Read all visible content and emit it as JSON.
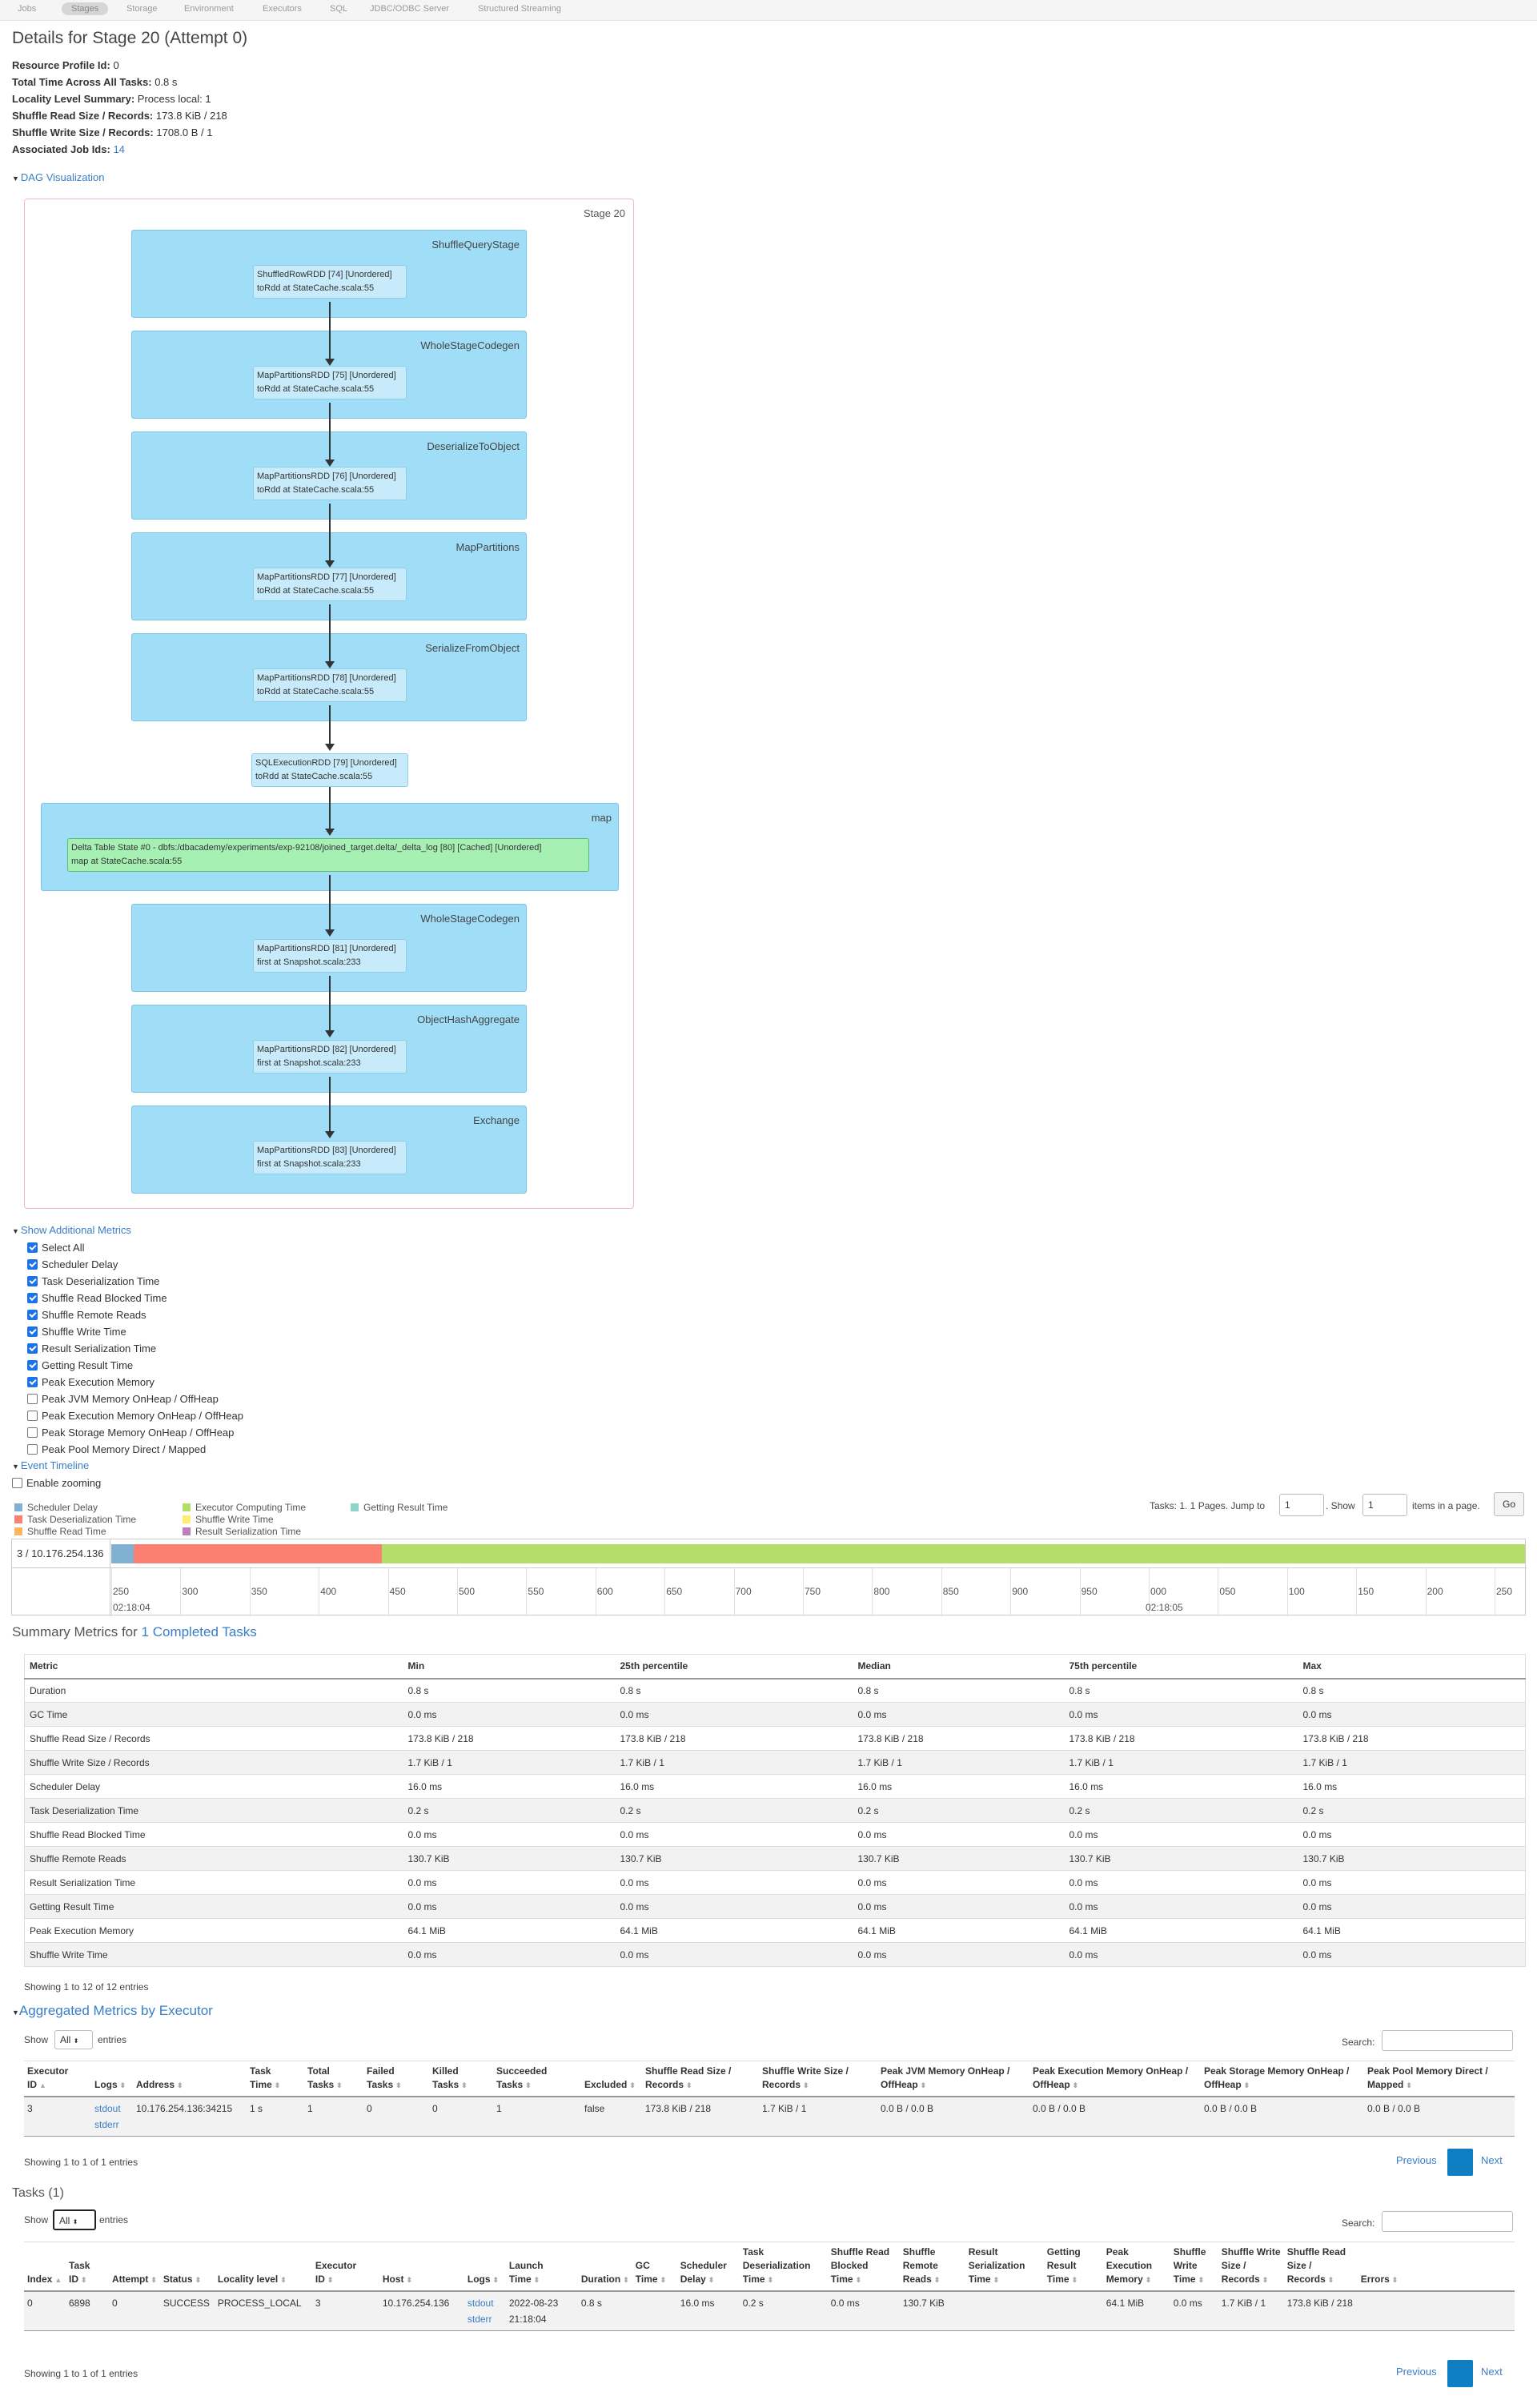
{
  "nav": {
    "tabs": [
      "Jobs",
      "Stages",
      "Storage",
      "Environment",
      "Executors",
      "SQL",
      "JDBC/ODBC Server",
      "Structured Streaming"
    ],
    "active": "Stages"
  },
  "title": "Details for Stage 20 (Attempt 0)",
  "info": [
    {
      "label": "Resource Profile Id:",
      "value": "0"
    },
    {
      "label": "Total Time Across All Tasks:",
      "value": "0.8 s"
    },
    {
      "label": "Locality Level Summary:",
      "value": "Process local: 1"
    },
    {
      "label": "Shuffle Read Size / Records:",
      "value": "173.8 KiB / 218"
    },
    {
      "label": "Shuffle Write Size / Records:",
      "value": "1708.0 B / 1"
    },
    {
      "label": "Associated Job Ids:",
      "value": "14"
    }
  ],
  "dag": {
    "toggle_label": "DAG Visualization",
    "stage_label": "Stage 20",
    "clusters": [
      "ShuffleQueryStage",
      "WholeStageCodegen",
      "DeserializeToObject",
      "MapPartitions",
      "SerializeFromObject",
      "map",
      "WholeStageCodegen",
      "ObjectHashAggregate",
      "Exchange"
    ],
    "nodes": [
      {
        "line1": "ShuffledRowRDD [74] [Unordered]",
        "line2": "toRdd at StateCache.scala:55"
      },
      {
        "line1": "MapPartitionsRDD [75] [Unordered]",
        "line2": "toRdd at StateCache.scala:55"
      },
      {
        "line1": "MapPartitionsRDD [76] [Unordered]",
        "line2": "toRdd at StateCache.scala:55"
      },
      {
        "line1": "MapPartitionsRDD [77] [Unordered]",
        "line2": "toRdd at StateCache.scala:55"
      },
      {
        "line1": "MapPartitionsRDD [78] [Unordered]",
        "line2": "toRdd at StateCache.scala:55"
      },
      {
        "line1": "SQLExecutionRDD [79] [Unordered]",
        "line2": "toRdd at StateCache.scala:55"
      },
      {
        "line1": "Delta Table State #0 - dbfs:/dbacademy/experiments/exp-92108/joined_target.delta/_delta_log [80] [Cached] [Unordered]",
        "line2": "map at StateCache.scala:55"
      },
      {
        "line1": "MapPartitionsRDD [81] [Unordered]",
        "line2": "first at Snapshot.scala:233"
      },
      {
        "line1": "MapPartitionsRDD [82] [Unordered]",
        "line2": "first at Snapshot.scala:233"
      },
      {
        "line1": "MapPartitionsRDD [83] [Unordered]",
        "line2": "first at Snapshot.scala:233"
      }
    ]
  },
  "metrics": {
    "toggle_label": "Show Additional Metrics",
    "items": [
      {
        "label": "Select All",
        "checked": true
      },
      {
        "label": "Scheduler Delay",
        "checked": true
      },
      {
        "label": "Task Deserialization Time",
        "checked": true
      },
      {
        "label": "Shuffle Read Blocked Time",
        "checked": true
      },
      {
        "label": "Shuffle Remote Reads",
        "checked": true
      },
      {
        "label": "Shuffle Write Time",
        "checked": true
      },
      {
        "label": "Result Serialization Time",
        "checked": true
      },
      {
        "label": "Getting Result Time",
        "checked": true
      },
      {
        "label": "Peak Execution Memory",
        "checked": true
      },
      {
        "label": "Peak JVM Memory OnHeap / OffHeap",
        "checked": false
      },
      {
        "label": "Peak Execution Memory OnHeap / OffHeap",
        "checked": false
      },
      {
        "label": "Peak Storage Memory OnHeap / OffHeap",
        "checked": false
      },
      {
        "label": "Peak Pool Memory Direct / Mapped",
        "checked": false
      }
    ]
  },
  "timeline": {
    "toggle_label": "Event Timeline",
    "zoom_label": "Enable zooming",
    "legend": [
      {
        "label": "Scheduler Delay",
        "color": "#80b1d3"
      },
      {
        "label": "Task Deserialization Time",
        "color": "#fb8072"
      },
      {
        "label": "Shuffle Read Time",
        "color": "#fdb462"
      },
      {
        "label": "Executor Computing Time",
        "color": "#b3de69"
      },
      {
        "label": "Shuffle Write Time",
        "color": "#ffed6f"
      },
      {
        "label": "Result Serialization Time",
        "color": "#bc80bd"
      },
      {
        "label": "Getting Result Time",
        "color": "#8dd3c7"
      }
    ],
    "pager_text": "Tasks: 1. 1 Pages. Jump to",
    "jump_value": "1",
    "show_text": ". Show",
    "show_value": "1",
    "items_text": "items in a page.",
    "go_label": "Go",
    "row_label": "3 / 10.176.254.136",
    "ticks": [
      "250",
      "300",
      "350",
      "400",
      "450",
      "500",
      "550",
      "600",
      "650",
      "700",
      "750",
      "800",
      "850",
      "900",
      "950",
      "000",
      "050",
      "100",
      "150",
      "200",
      "250"
    ],
    "date_label_1": "02:18:04",
    "date_label_2": "02:18:05"
  },
  "summary": {
    "title_prefix": "Summary Metrics for ",
    "title_link": "1 Completed Tasks",
    "headers": [
      "Metric",
      "Min",
      "25th percentile",
      "Median",
      "75th percentile",
      "Max"
    ],
    "rows": [
      [
        "Duration",
        "0.8 s",
        "0.8 s",
        "0.8 s",
        "0.8 s",
        "0.8 s"
      ],
      [
        "GC Time",
        "0.0 ms",
        "0.0 ms",
        "0.0 ms",
        "0.0 ms",
        "0.0 ms"
      ],
      [
        "Shuffle Read Size / Records",
        "173.8 KiB / 218",
        "173.8 KiB / 218",
        "173.8 KiB / 218",
        "173.8 KiB / 218",
        "173.8 KiB / 218"
      ],
      [
        "Shuffle Write Size / Records",
        "1.7 KiB / 1",
        "1.7 KiB / 1",
        "1.7 KiB / 1",
        "1.7 KiB / 1",
        "1.7 KiB / 1"
      ],
      [
        "Scheduler Delay",
        "16.0 ms",
        "16.0 ms",
        "16.0 ms",
        "16.0 ms",
        "16.0 ms"
      ],
      [
        "Task Deserialization Time",
        "0.2 s",
        "0.2 s",
        "0.2 s",
        "0.2 s",
        "0.2 s"
      ],
      [
        "Shuffle Read Blocked Time",
        "0.0 ms",
        "0.0 ms",
        "0.0 ms",
        "0.0 ms",
        "0.0 ms"
      ],
      [
        "Shuffle Remote Reads",
        "130.7 KiB",
        "130.7 KiB",
        "130.7 KiB",
        "130.7 KiB",
        "130.7 KiB"
      ],
      [
        "Result Serialization Time",
        "0.0 ms",
        "0.0 ms",
        "0.0 ms",
        "0.0 ms",
        "0.0 ms"
      ],
      [
        "Getting Result Time",
        "0.0 ms",
        "0.0 ms",
        "0.0 ms",
        "0.0 ms",
        "0.0 ms"
      ],
      [
        "Peak Execution Memory",
        "64.1 MiB",
        "64.1 MiB",
        "64.1 MiB",
        "64.1 MiB",
        "64.1 MiB"
      ],
      [
        "Shuffle Write Time",
        "0.0 ms",
        "0.0 ms",
        "0.0 ms",
        "0.0 ms",
        "0.0 ms"
      ]
    ],
    "showing": "Showing 1 to 12 of 12 entries"
  },
  "executors": {
    "toggle_label": "Aggregated Metrics by Executor",
    "show_label": "Show",
    "show_value": "All",
    "entries_label": "entries",
    "search_label": "Search:",
    "headers": [
      "Executor ID",
      "Logs",
      "Address",
      "Task Time",
      "Total Tasks",
      "Failed Tasks",
      "Killed Tasks",
      "Succeeded Tasks",
      "Excluded",
      "Shuffle Read Size / Records",
      "Shuffle Write Size / Records",
      "Peak JVM Memory OnHeap / OffHeap",
      "Peak Execution Memory OnHeap / OffHeap",
      "Peak Storage Memory OnHeap / OffHeap",
      "Peak Pool Memory Direct / Mapped"
    ],
    "row": {
      "id": "3",
      "log1": "stdout",
      "log2": "stderr",
      "address": "10.176.254.136:34215",
      "task_time": "1 s",
      "total": "1",
      "failed": "0",
      "killed": "0",
      "succeeded": "1",
      "excluded": "false",
      "shuffle_read": "173.8 KiB / 218",
      "shuffle_write": "1.7 KiB / 1",
      "jvm": "0.0 B / 0.0 B",
      "exec_mem": "0.0 B / 0.0 B",
      "storage": "0.0 B / 0.0 B",
      "pool": "0.0 B / 0.0 B"
    },
    "showing": "Showing 1 to 1 of 1 entries",
    "prev": "Previous",
    "next": "Next"
  },
  "tasks": {
    "title": "Tasks (1)",
    "show_label": "Show",
    "show_value": "All",
    "entries_label": "entries",
    "search_label": "Search:",
    "headers": [
      "Index",
      "Task ID",
      "Attempt",
      "Status",
      "Locality level",
      "Executor ID",
      "Host",
      "Logs",
      "Launch Time",
      "Duration",
      "GC Time",
      "Scheduler Delay",
      "Task Deserialization Time",
      "Shuffle Read Blocked Time",
      "Shuffle Remote Reads",
      "Result Serialization Time",
      "Getting Result Time",
      "Peak Execution Memory",
      "Shuffle Write Time",
      "Shuffle Write Size / Records",
      "Shuffle Read Size / Records",
      "Errors"
    ],
    "row": {
      "index": "0",
      "task_id": "6898",
      "attempt": "0",
      "status": "SUCCESS",
      "locality": "PROCESS_LOCAL",
      "executor": "3",
      "host": "10.176.254.136",
      "log1": "stdout",
      "log2": "stderr",
      "launch": "2022-08-23 21:18:04",
      "duration": "0.8 s",
      "gc": "",
      "sched": "16.0 ms",
      "deser": "0.2 s",
      "blocked": "0.0 ms",
      "remote": "130.7 KiB",
      "ser": "",
      "getting": "",
      "peak": "64.1 MiB",
      "swtime": "0.0 ms",
      "swsize": "1.7 KiB / 1",
      "srsize": "173.8 KiB / 218",
      "errors": ""
    },
    "showing": "Showing 1 to 1 of 1 entries",
    "prev": "Previous",
    "next": "Next"
  }
}
